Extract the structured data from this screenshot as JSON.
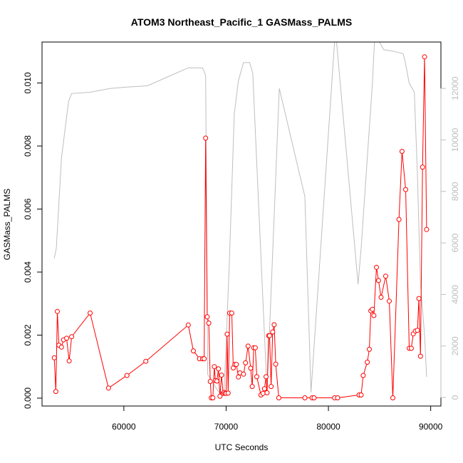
{
  "chart_data": {
    "type": "line",
    "title": "ATOM3 Northeast_Pacific_1 GASMass_PALMS",
    "xlabel": "UTC Seconds",
    "ylabel": "GASMass_PALMS",
    "xlim": [
      52000,
      91000
    ],
    "ylim": [
      -0.00025,
      0.0113
    ],
    "y2lim": [
      -330,
      13800
    ],
    "x_ticks": [
      60000,
      70000,
      80000,
      90000
    ],
    "y_ticks": [
      0.0,
      0.002,
      0.004,
      0.006,
      0.008,
      0.01
    ],
    "y_tick_labels": [
      "0.000",
      "0.002",
      "0.004",
      "0.006",
      "0.008",
      "0.010"
    ],
    "y2_ticks": [
      0,
      2000,
      4000,
      6000,
      8000,
      10000,
      12000
    ],
    "grid": false,
    "legend": "none",
    "colors": {
      "primary": "#ff0000",
      "secondary": "#bebebe"
    },
    "series": [
      {
        "axis": "left",
        "style": "line+points",
        "color": "#ff0000",
        "x": [
          53200,
          53350,
          53500,
          53650,
          53900,
          54100,
          54400,
          54650,
          54900,
          56700,
          58500,
          60300,
          62150,
          66300,
          66800,
          67400,
          67700,
          67850,
          68000,
          68150,
          68300,
          68450,
          68550,
          68700,
          68850,
          68950,
          69100,
          69250,
          69400,
          69550,
          69700,
          69800,
          69900,
          70000,
          70100,
          70200,
          70350,
          70550,
          70700,
          70850,
          71000,
          71200,
          71350,
          71700,
          71900,
          72150,
          72400,
          72550,
          72700,
          72850,
          73000,
          73400,
          73600,
          73750,
          73900,
          74000,
          74150,
          74250,
          74400,
          74550,
          74700,
          74850,
          75150,
          77700,
          78400,
          78600,
          80600,
          80900,
          83000,
          83200,
          83400,
          83800,
          84000,
          84150,
          84300,
          84450,
          84700,
          84900,
          85150,
          85600,
          85950,
          86300,
          86900,
          87200,
          87550,
          87900,
          88100,
          88300,
          88500,
          88700,
          88850,
          89000,
          89200,
          89400,
          89600
        ],
        "y": [
          0.00128,
          0.00021,
          0.00275,
          0.00168,
          0.00162,
          0.00185,
          0.0019,
          0.00118,
          0.00195,
          0.0027,
          0.00032,
          0.00072,
          0.00117,
          0.00232,
          0.0015,
          0.00125,
          0.00125,
          0.00125,
          0.00825,
          0.00258,
          0.00238,
          0.00053,
          1e-05,
          1e-05,
          0.001,
          0.00056,
          0.00054,
          0.00093,
          6e-05,
          0.00073,
          0.00015,
          0.00018,
          0.00015,
          0.00015,
          0.00203,
          0.00016,
          0.0027,
          0.0027,
          0.00096,
          0.00107,
          0.00107,
          0.00067,
          0.0008,
          0.00076,
          0.00112,
          0.00165,
          0.00095,
          0.00037,
          0.0016,
          0.0016,
          0.00068,
          0.0001,
          0.00015,
          0.0003,
          0.00068,
          0.00017,
          0.00198,
          0.00198,
          0.00037,
          0.0021,
          0.00233,
          0.00108,
          1e-05,
          1e-05,
          1e-05,
          1e-05,
          1e-05,
          1e-05,
          0.0001,
          0.0001,
          0.00072,
          0.00114,
          0.00155,
          0.00277,
          0.00282,
          0.00262,
          0.00415,
          0.00373,
          0.0032,
          0.00387,
          0.00308,
          1e-05,
          0.00567,
          0.00783,
          0.00662,
          0.00158,
          0.00158,
          0.00204,
          0.00213,
          0.00215,
          0.00316,
          0.00133,
          0.00733,
          0.01083,
          0.00535
        ]
      },
      {
        "axis": "right",
        "style": "line",
        "color": "#bebebe",
        "x": [
          53200,
          53400,
          53900,
          54600,
          54900,
          56700,
          58700,
          60300,
          62300,
          66300,
          67700,
          68000,
          68200,
          68800,
          69300,
          69800,
          70300,
          70800,
          71200,
          71700,
          72300,
          72600,
          74000,
          75200,
          77700,
          78300,
          80600,
          80800,
          82900,
          83200,
          84300,
          84500,
          85000,
          85400,
          86300,
          87300,
          87500,
          87900,
          88400,
          88700,
          89000,
          89400,
          89600
        ],
        "y": [
          5400,
          5800,
          9300,
          11500,
          11800,
          11850,
          12000,
          12050,
          12100,
          12800,
          12800,
          12500,
          900,
          500,
          200,
          250,
          5100,
          11000,
          12300,
          13000,
          13000,
          12600,
          200,
          12000,
          7800,
          200,
          13800,
          13800,
          4400,
          5800,
          12200,
          13800,
          13800,
          13500,
          13450,
          13350,
          13050,
          12200,
          11850,
          8650,
          4400,
          2450,
          800
        ]
      }
    ]
  }
}
